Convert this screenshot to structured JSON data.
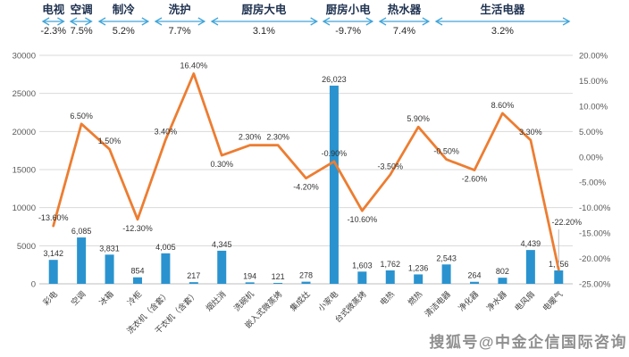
{
  "header_groups": [
    {
      "label": "电视",
      "pct": "-2.3%",
      "span": 1
    },
    {
      "label": "空调",
      "pct": "7.5%",
      "span": 1
    },
    {
      "label": "制冷",
      "pct": "5.2%",
      "span": 2
    },
    {
      "label": "洗护",
      "pct": "7.7%",
      "span": 2
    },
    {
      "label": "厨房大电",
      "pct": "3.1%",
      "span": 4
    },
    {
      "label": "厨房小电",
      "pct": "-9.7%",
      "span": 2
    },
    {
      "label": "热水器",
      "pct": "7.4%",
      "span": 2
    },
    {
      "label": "生活电器",
      "pct": "3.2%",
      "span": 5
    }
  ],
  "chart_data": {
    "type": "bar",
    "subtype": "bar-line-combo",
    "categories": [
      "彩电",
      "空调",
      "冰箱",
      "冷柜",
      "洗衣机（含套）",
      "干衣机（含套）",
      "烟灶消",
      "洗碗机",
      "嵌入式微蒸烤",
      "集成灶",
      "小家电",
      "台式微蒸烤",
      "电热",
      "燃热",
      "清洁电器",
      "净化器",
      "净水器",
      "电风扇",
      "电暖气"
    ],
    "series": [
      {
        "chart_type": "bar",
        "axis": "left",
        "color": "#2a93cf",
        "values": [
          3142,
          6085,
          3831,
          854,
          4005,
          217,
          4345,
          194,
          121,
          278,
          26023,
          1603,
          1762,
          1236,
          2543,
          264,
          802,
          4439,
          1756
        ],
        "labels": [
          "3,142",
          "6,085",
          "3,831",
          "854",
          "4,005",
          "217",
          "4,345",
          "194",
          "121",
          "278",
          "26,023",
          "1,603",
          "1,762",
          "1,236",
          "2,543",
          "264",
          "802",
          "4,439",
          "1,756"
        ]
      },
      {
        "chart_type": "line",
        "axis": "right",
        "color": "#ed7d31",
        "values": [
          -13.6,
          6.5,
          1.5,
          -12.3,
          3.4,
          16.4,
          0.3,
          2.3,
          2.3,
          -4.2,
          -0.9,
          -10.6,
          -3.5,
          5.9,
          -0.5,
          -2.6,
          8.6,
          3.3,
          -22.2
        ],
        "labels": [
          "-13.60%",
          "6.50%",
          "1.50%",
          "-12.30%",
          "3.40%",
          "16.40%",
          "0.30%",
          "2.30%",
          "2.30%",
          "-4.20%",
          "-0.90%",
          "-10.60%",
          "-3.50%",
          "5.90%",
          "-0.50%",
          "-2.60%",
          "8.60%",
          "3.30%",
          "-22.20%"
        ]
      }
    ],
    "left_axis": {
      "min": 0,
      "max": 30000,
      "step": 5000,
      "tick_labels": [
        "0",
        "5000",
        "10000",
        "15000",
        "20000",
        "25000",
        "30000"
      ]
    },
    "right_axis": {
      "min": -25,
      "max": 20,
      "step": 5,
      "tick_labels": [
        "20.00%",
        "15.00%",
        "10.00%",
        "5.00%",
        "0.00%",
        "-5.00%",
        "-10.00%",
        "-15.00%",
        "-20.00%",
        "-25.00%"
      ]
    },
    "grid": true,
    "legend": "none"
  },
  "colors": {
    "bar": "#2a93cf",
    "line": "#ed7d31",
    "arrow": "#41a5d9",
    "grid": "#d9d9d9",
    "axis_line": "#bfbfbf",
    "axis_text": "#595959",
    "data_label": "#333333",
    "header_label": "#1f3250",
    "watermark": "#8f8f8f"
  },
  "watermark": "搜狐号@中金企信国际咨询"
}
